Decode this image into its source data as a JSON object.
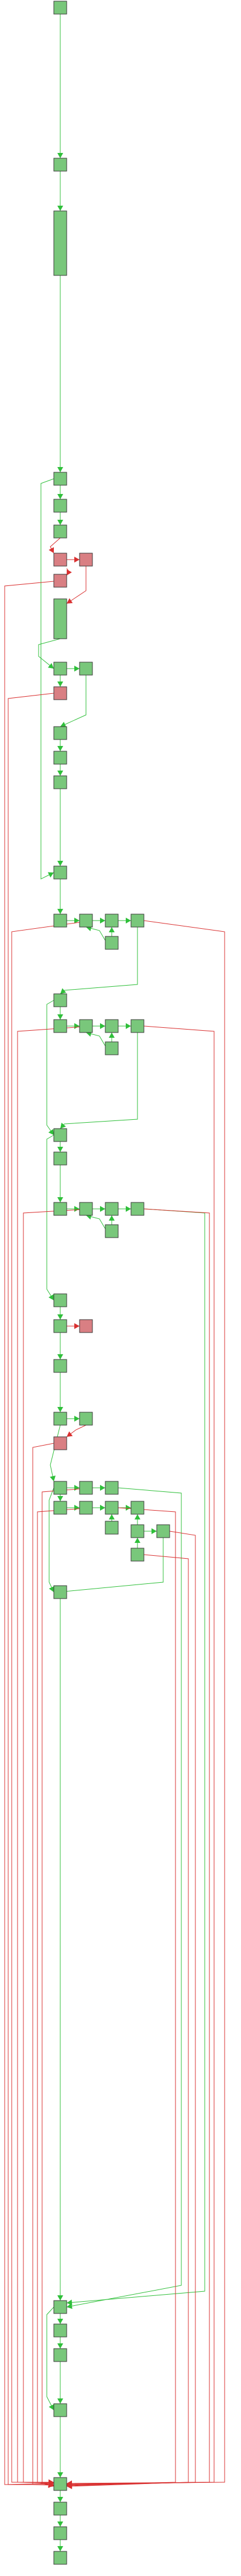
{
  "colors": {
    "background": "#ffffff",
    "node_ok_fill": "#79c77b",
    "node_err_fill": "#d97f83",
    "node_stroke": "#3a3a3a",
    "edge_ok": "#2fbf3a",
    "edge_err": "#d93030"
  }
}
